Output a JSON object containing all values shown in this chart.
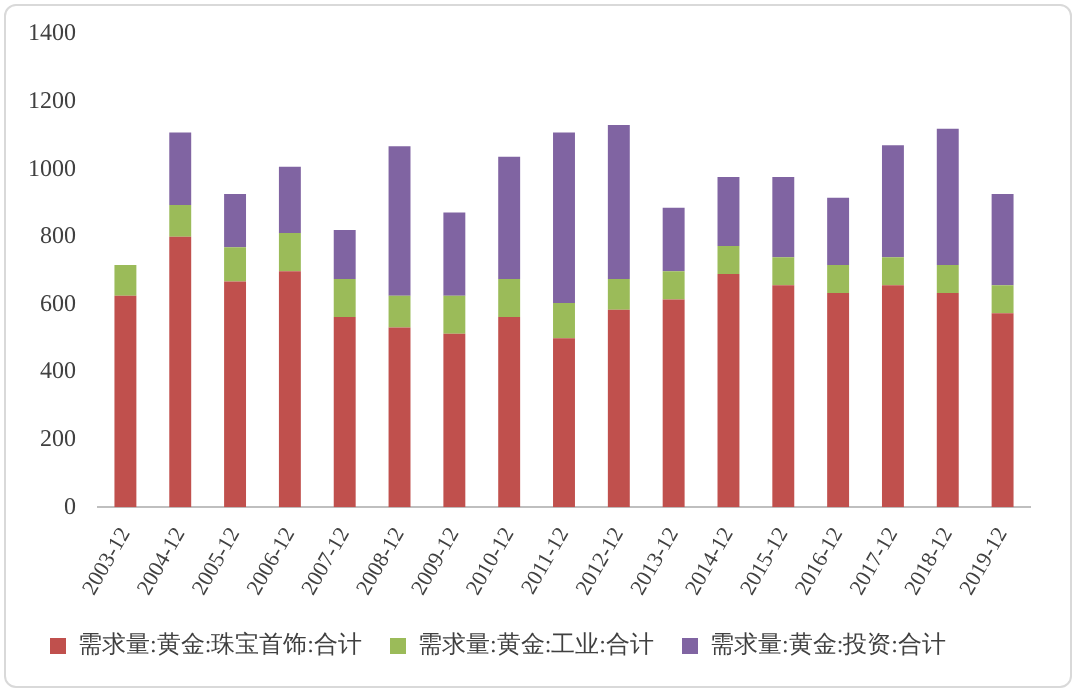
{
  "chart_data": {
    "type": "bar",
    "stacked": true,
    "categories": [
      "2003-12",
      "2004-12",
      "2005-12",
      "2006-12",
      "2007-12",
      "2008-12",
      "2009-12",
      "2010-12",
      "2011-12",
      "2012-12",
      "2013-12",
      "2014-12",
      "2015-12",
      "2016-12",
      "2017-12",
      "2018-12",
      "2019-12"
    ],
    "series": [
      {
        "name": "需求量:黄金:珠宝首饰:合计",
        "color": "#c0504d",
        "values": [
          626,
          800,
          668,
          698,
          563,
          532,
          513,
          563,
          500,
          584,
          615,
          690,
          657,
          634,
          657,
          634,
          574
        ]
      },
      {
        "name": "需求量:黄金:工业:合计",
        "color": "#9bbb59",
        "values": [
          91,
          94,
          101,
          113,
          112,
          94,
          113,
          112,
          104,
          91,
          83,
          83,
          83,
          83,
          83,
          83,
          83
        ]
      },
      {
        "name": "需求量:黄金:投资:合计",
        "color": "#8064a2",
        "values": [
          null,
          215,
          158,
          196,
          145,
          442,
          246,
          362,
          505,
          456,
          188,
          204,
          237,
          199,
          331,
          403,
          270
        ]
      }
    ],
    "ylim": [
      0,
      1400
    ],
    "yticks": [
      0,
      200,
      400,
      600,
      800,
      1000,
      1200,
      1400
    ],
    "grid": false,
    "legend": "bottom"
  }
}
